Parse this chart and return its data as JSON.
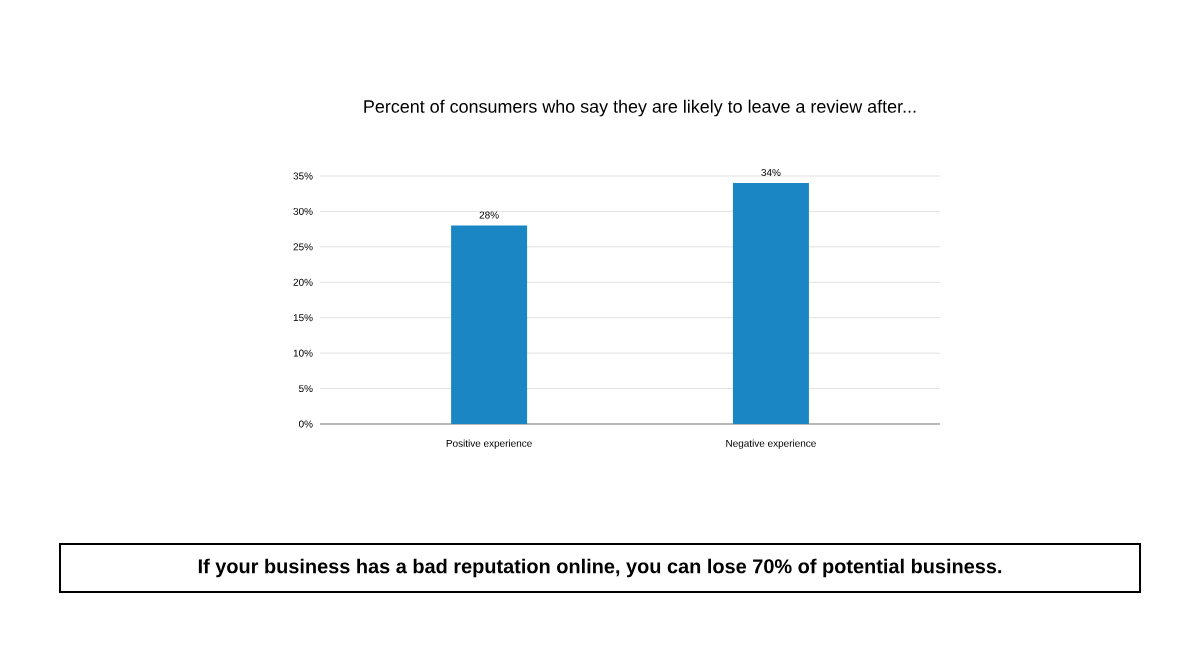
{
  "chart_data": {
    "type": "bar",
    "title": "Percent of consumers who say they are likely to leave a review after...",
    "categories": [
      "Positive experience",
      "Negative experience"
    ],
    "values": [
      28,
      34
    ],
    "value_labels": [
      "28%",
      "34%"
    ],
    "color": "#1a86c4",
    "ylim": [
      0,
      35
    ],
    "yticks": [
      {
        "value": 0,
        "label": "0%"
      },
      {
        "value": 5,
        "label": "5%"
      },
      {
        "value": 10,
        "label": "10%"
      },
      {
        "value": 15,
        "label": "15%"
      },
      {
        "value": 20,
        "label": "20%"
      },
      {
        "value": 25,
        "label": "25%"
      },
      {
        "value": 30,
        "label": "30%"
      },
      {
        "value": 35,
        "label": "35%"
      }
    ],
    "grid": "y",
    "annotations": [
      "If your business has a bad reputation online, you can lose 70% of potential business."
    ]
  }
}
